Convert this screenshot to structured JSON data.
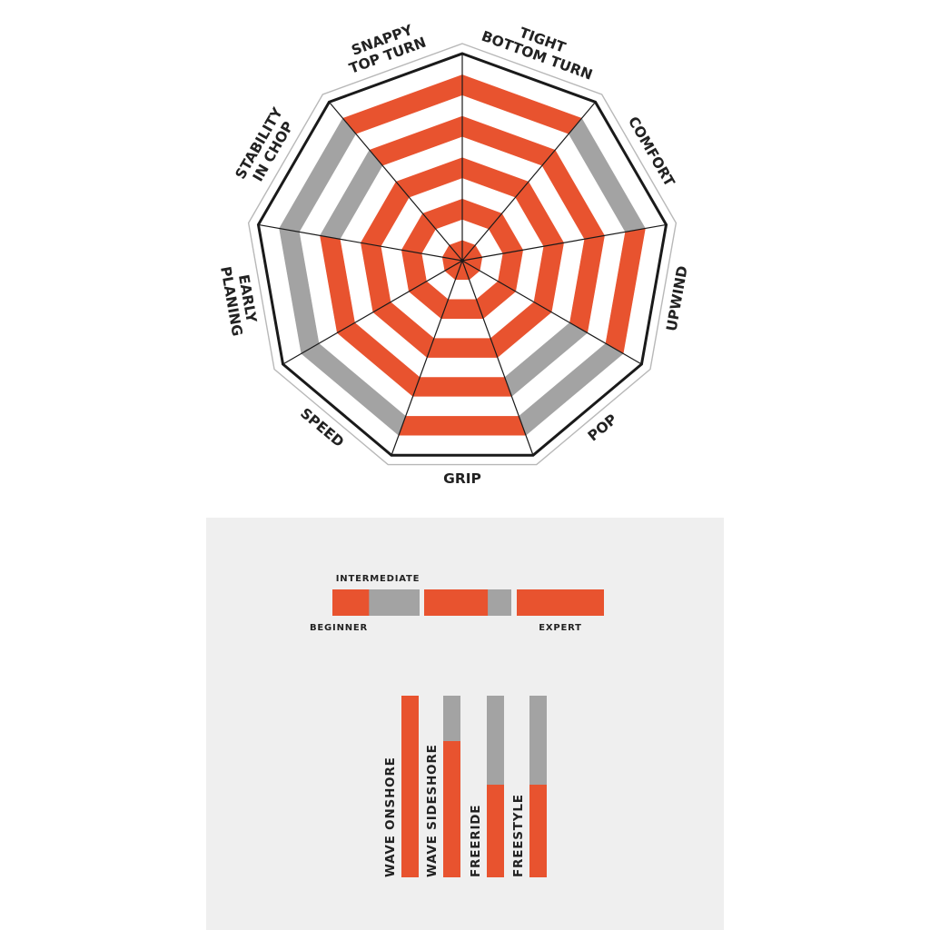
{
  "colors": {
    "active": "#e8532f",
    "inactive": "#a3a3a3",
    "stripe": "#ffffff",
    "outline": "#1a1a1a",
    "panel": "#efefef"
  },
  "chart_data": [
    {
      "type": "radar",
      "title": "",
      "rings": 10,
      "axes": [
        {
          "label": "TIGHT BOTTOM TURN",
          "lines": [
            "TIGHT",
            "BOTTOM TURN"
          ],
          "value": 9
        },
        {
          "label": "COMFORT",
          "lines": [
            "COMFORT"
          ],
          "value": 8
        },
        {
          "label": "UPWIND",
          "lines": [
            "UPWIND"
          ],
          "value": 9
        },
        {
          "label": "POP",
          "lines": [
            "POP"
          ],
          "value": 5
        },
        {
          "label": "GRIP",
          "lines": [
            "GRIP"
          ],
          "value": 10
        },
        {
          "label": "SPEED",
          "lines": [
            "SPEED"
          ],
          "value": 8
        },
        {
          "label": "EARLY PLANING",
          "lines": [
            "EARLY",
            "PLANING"
          ],
          "value": 7
        },
        {
          "label": "STABILITY IN CHOP",
          "lines": [
            "STABILITY",
            "IN CHOP"
          ],
          "value": 6
        },
        {
          "label": "SNAPPY TOP TURN",
          "lines": [
            "SNAPPY",
            "TOP TURN"
          ],
          "value": 10
        }
      ]
    },
    {
      "type": "bar",
      "title": "",
      "segments": [
        {
          "name": "BEGINNER",
          "filled": 0.42
        },
        {
          "name": "INTERMEDIATE",
          "filled": 0.73
        },
        {
          "name": "EXPERT",
          "filled": 1.0
        }
      ],
      "labels": {
        "beginner": "BEGINNER",
        "intermediate": "INTERMEDIATE",
        "expert": "EXPERT"
      }
    },
    {
      "type": "bar",
      "title": "",
      "categories": [
        "WAVE ONSHORE",
        "WAVE SIDESHORE",
        "FREERIDE",
        "FREESTYLE"
      ],
      "values": [
        100,
        75,
        51,
        51
      ],
      "ylim": [
        0,
        100
      ]
    }
  ]
}
